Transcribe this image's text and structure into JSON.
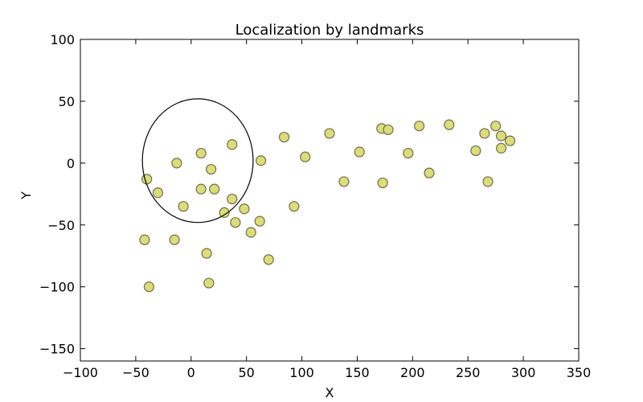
{
  "chart_data": {
    "type": "scatter",
    "title": "Localization by landmarks",
    "xlabel": "X",
    "ylabel": "Y",
    "xlim": [
      -100,
      350
    ],
    "ylim": [
      -160,
      100
    ],
    "xticks": [
      -100,
      -50,
      0,
      50,
      100,
      150,
      200,
      250,
      300,
      350
    ],
    "yticks": [
      -150,
      -100,
      -50,
      0,
      50,
      100
    ],
    "grid": false,
    "legend": "none",
    "marker_color": "#dcdc7a",
    "marker_edge_color": "#6e6e4a",
    "series": [
      {
        "points": [
          [
            -40,
            -13
          ],
          [
            -30,
            -24
          ],
          [
            -13,
            0
          ],
          [
            -7,
            -35
          ],
          [
            9,
            8
          ],
          [
            9,
            -21
          ],
          [
            18,
            -5
          ],
          [
            21,
            -21
          ],
          [
            30,
            -40
          ],
          [
            37,
            15
          ],
          [
            37,
            -29
          ],
          [
            40,
            -48
          ],
          [
            48,
            -37
          ],
          [
            54,
            -56
          ],
          [
            62,
            -47
          ],
          [
            63,
            2
          ],
          [
            70,
            -78
          ],
          [
            84,
            21
          ],
          [
            93,
            -35
          ],
          [
            103,
            5
          ],
          [
            125,
            24
          ],
          [
            138,
            -15
          ],
          [
            152,
            9
          ],
          [
            172,
            28
          ],
          [
            178,
            27
          ],
          [
            173,
            -16
          ],
          [
            196,
            8
          ],
          [
            206,
            30
          ],
          [
            215,
            -8
          ],
          [
            233,
            31
          ],
          [
            257,
            10
          ],
          [
            265,
            24
          ],
          [
            268,
            -15
          ],
          [
            275,
            30
          ],
          [
            280,
            22
          ],
          [
            280,
            12
          ],
          [
            288,
            18
          ],
          [
            -42,
            -62
          ],
          [
            -15,
            -62
          ],
          [
            14,
            -73
          ],
          [
            16,
            -97
          ],
          [
            -38,
            -100
          ]
        ]
      }
    ],
    "ellipse": {
      "cx": 6,
      "cy": 2,
      "rx": 50,
      "ry": 50
    }
  }
}
